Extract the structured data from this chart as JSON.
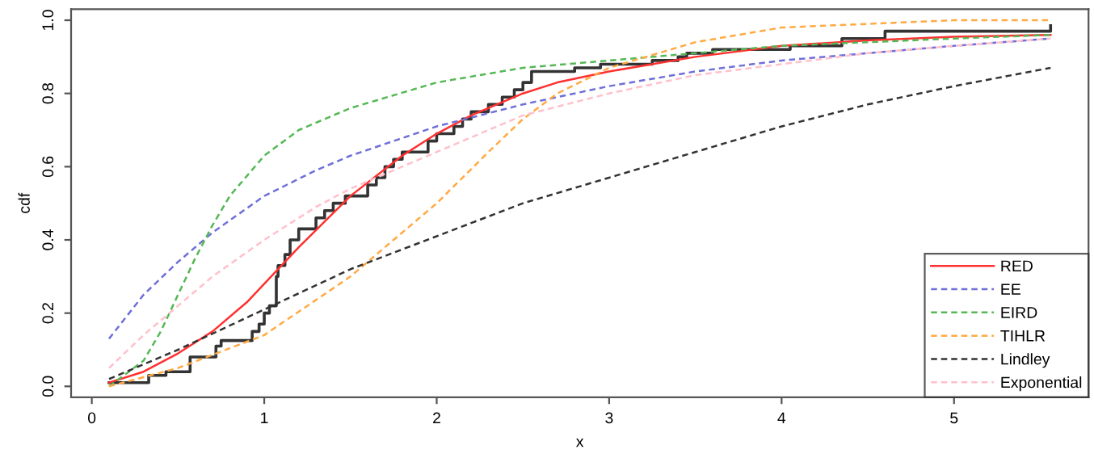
{
  "chart_data": {
    "type": "line",
    "xlabel": "x",
    "ylabel": "cdf",
    "xlim": [
      -0.12,
      5.78
    ],
    "ylim": [
      -0.03,
      1.03
    ],
    "xticks": [
      0,
      1,
      2,
      3,
      4,
      5
    ],
    "yticks": [
      {
        "value": 0,
        "label": "0.0"
      },
      {
        "value": 0.2,
        "label": "0.2"
      },
      {
        "value": 0.4,
        "label": "0.4"
      },
      {
        "value": 0.6,
        "label": "0.6"
      },
      {
        "value": 0.8,
        "label": "0.8"
      },
      {
        "value": 1,
        "label": "1.0"
      }
    ],
    "grid": false,
    "legend": "bottom right",
    "series": [
      {
        "type": "step",
        "color": "#333333",
        "line_style": "solid",
        "x": [
          0.1,
          0.33,
          0.43,
          0.57,
          0.72,
          0.75,
          0.93,
          0.97,
          1.0,
          1.03,
          1.07,
          1.08,
          1.12,
          1.15,
          1.2,
          1.3,
          1.35,
          1.4,
          1.47,
          1.6,
          1.65,
          1.7,
          1.75,
          1.8,
          1.95,
          2.0,
          2.1,
          2.15,
          2.2,
          2.3,
          2.38,
          2.45,
          2.5,
          2.55,
          2.8,
          2.95,
          3.25,
          3.4,
          3.45,
          3.6,
          4.05,
          4.35,
          4.6,
          5.56
        ],
        "values": [
          0.01,
          0.03,
          0.04,
          0.08,
          0.11,
          0.125,
          0.15,
          0.17,
          0.2,
          0.22,
          0.3,
          0.33,
          0.36,
          0.4,
          0.43,
          0.46,
          0.48,
          0.5,
          0.52,
          0.55,
          0.57,
          0.6,
          0.62,
          0.64,
          0.67,
          0.69,
          0.71,
          0.73,
          0.75,
          0.77,
          0.79,
          0.81,
          0.83,
          0.86,
          0.87,
          0.88,
          0.89,
          0.9,
          0.91,
          0.92,
          0.93,
          0.95,
          0.97,
          0.985
        ]
      },
      {
        "name": "RED",
        "color": "#ff3030",
        "line_style": "solid",
        "x": [
          0.1,
          0.3,
          0.5,
          0.7,
          0.9,
          1.0,
          1.2,
          1.5,
          1.8,
          2.0,
          2.2,
          2.5,
          2.7,
          3.0,
          3.5,
          4.0,
          4.5,
          5.0,
          5.56
        ],
        "values": [
          0.01,
          0.04,
          0.09,
          0.15,
          0.23,
          0.28,
          0.38,
          0.52,
          0.63,
          0.69,
          0.74,
          0.8,
          0.83,
          0.86,
          0.9,
          0.93,
          0.945,
          0.955,
          0.96
        ]
      },
      {
        "name": "EE",
        "color": "#6f6fd8",
        "line_style": "dashed",
        "x": [
          0.1,
          0.3,
          0.5,
          0.7,
          1.0,
          1.3,
          1.5,
          2.0,
          2.5,
          3.0,
          3.5,
          4.0,
          4.5,
          5.0,
          5.56
        ],
        "values": [
          0.13,
          0.25,
          0.34,
          0.42,
          0.52,
          0.59,
          0.63,
          0.71,
          0.77,
          0.82,
          0.86,
          0.89,
          0.91,
          0.93,
          0.95
        ]
      },
      {
        "name": "EIRD",
        "color": "#55b855",
        "line_style": "dashed",
        "x": [
          0.1,
          0.3,
          0.4,
          0.5,
          0.6,
          0.7,
          0.8,
          1.0,
          1.2,
          1.5,
          2.0,
          2.5,
          3.0,
          3.5,
          4.0,
          5.0,
          5.56
        ],
        "values": [
          0.0,
          0.07,
          0.15,
          0.25,
          0.35,
          0.44,
          0.52,
          0.63,
          0.7,
          0.76,
          0.83,
          0.87,
          0.89,
          0.91,
          0.93,
          0.95,
          0.96
        ]
      },
      {
        "name": "TIHLR",
        "color": "#ffaa44",
        "line_style": "dashed",
        "x": [
          0.1,
          0.5,
          1.0,
          1.5,
          2.0,
          2.3,
          2.5,
          2.7,
          3.0,
          3.5,
          4.0,
          4.5,
          5.0,
          5.56
        ],
        "values": [
          0.0,
          0.05,
          0.14,
          0.3,
          0.5,
          0.64,
          0.73,
          0.8,
          0.87,
          0.94,
          0.98,
          0.99,
          1.0,
          1.0
        ]
      },
      {
        "name": "Lindley",
        "color": "#333333",
        "line_style": "dashed",
        "x": [
          0.1,
          0.5,
          1.0,
          1.5,
          2.0,
          2.5,
          3.0,
          3.5,
          4.0,
          4.5,
          5.0,
          5.56
        ],
        "values": [
          0.02,
          0.1,
          0.21,
          0.32,
          0.41,
          0.5,
          0.57,
          0.64,
          0.71,
          0.77,
          0.82,
          0.87
        ]
      },
      {
        "name": "Exponential",
        "color": "#ffc0cb",
        "line_style": "dashed",
        "x": [
          0.1,
          0.3,
          0.5,
          0.7,
          1.0,
          1.3,
          1.5,
          2.0,
          2.5,
          3.0,
          3.5,
          4.0,
          4.5,
          5.0,
          5.56
        ],
        "values": [
          0.05,
          0.14,
          0.22,
          0.3,
          0.4,
          0.49,
          0.54,
          0.64,
          0.74,
          0.8,
          0.85,
          0.88,
          0.91,
          0.93,
          0.95
        ]
      }
    ]
  }
}
